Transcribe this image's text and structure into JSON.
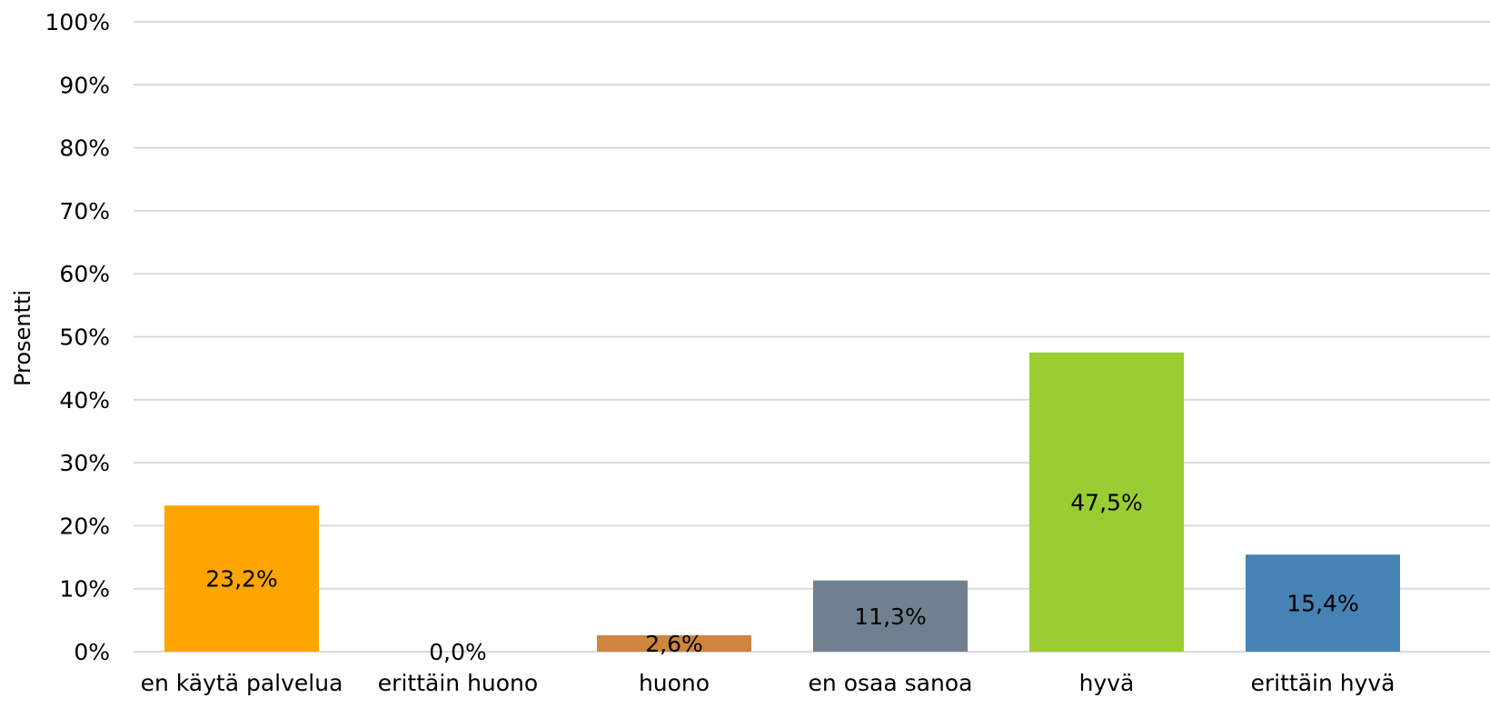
{
  "chart_data": {
    "type": "bar",
    "categories": [
      "en käytä palvelua",
      "erittäin huono",
      "huono",
      "en osaa sanoa",
      "hyvä",
      "erittäin hyvä"
    ],
    "values": [
      23.2,
      0.0,
      2.6,
      11.3,
      47.5,
      15.4
    ],
    "data_labels": [
      "23,2%",
      "0,0%",
      "2,6%",
      "11,3%",
      "47,5%",
      "15,4%"
    ],
    "colors": [
      "#ffa500",
      "#b22222",
      "#cd853f",
      "#708090",
      "#9acd32",
      "#4682b4"
    ],
    "title": "",
    "xlabel": "",
    "ylabel": "Prosentti",
    "ylim": [
      0,
      100
    ],
    "yticks": [
      "0%",
      "10%",
      "20%",
      "30%",
      "40%",
      "50%",
      "60%",
      "70%",
      "80%",
      "90%",
      "100%"
    ],
    "grid": true,
    "legend": "none"
  }
}
